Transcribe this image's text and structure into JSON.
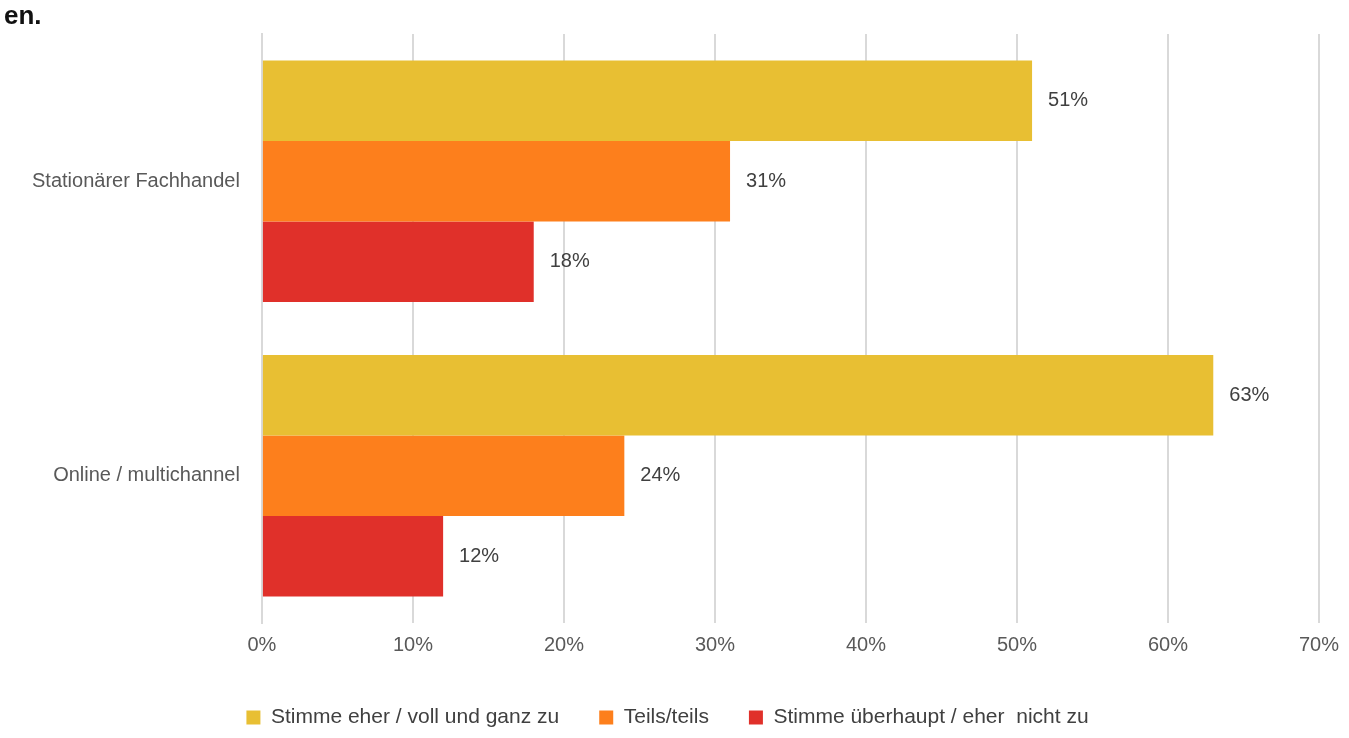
{
  "chart_data": {
    "type": "bar",
    "orientation": "horizontal",
    "title": "en.",
    "categories": [
      "Stationärer Fachhandel",
      "Online / multichannel"
    ],
    "series": [
      {
        "name": "Stimme eher / voll und ganz zu",
        "color": "#e8bf33",
        "values": [
          51,
          63
        ],
        "value_labels": [
          "51%",
          "63%"
        ]
      },
      {
        "name": "Teils/teils",
        "color": "#fd7f1c",
        "values": [
          31,
          24
        ],
        "value_labels": [
          "31%",
          "24%"
        ]
      },
      {
        "name": "Stimme überhaupt / eher  nicht zu",
        "color": "#e0302a",
        "values": [
          18,
          12
        ],
        "value_labels": [
          "18%",
          "12%"
        ]
      }
    ],
    "xlim": [
      0,
      70
    ],
    "xticks": [
      {
        "value": 0,
        "label": "0%"
      },
      {
        "value": 10,
        "label": "10%"
      },
      {
        "value": 20,
        "label": "20%"
      },
      {
        "value": 30,
        "label": "30%"
      },
      {
        "value": 40,
        "label": "40%"
      },
      {
        "value": 50,
        "label": "50%"
      },
      {
        "value": 60,
        "label": "60%"
      },
      {
        "value": 70,
        "label": "70%"
      }
    ],
    "grid": "x",
    "legend": "bottom"
  }
}
